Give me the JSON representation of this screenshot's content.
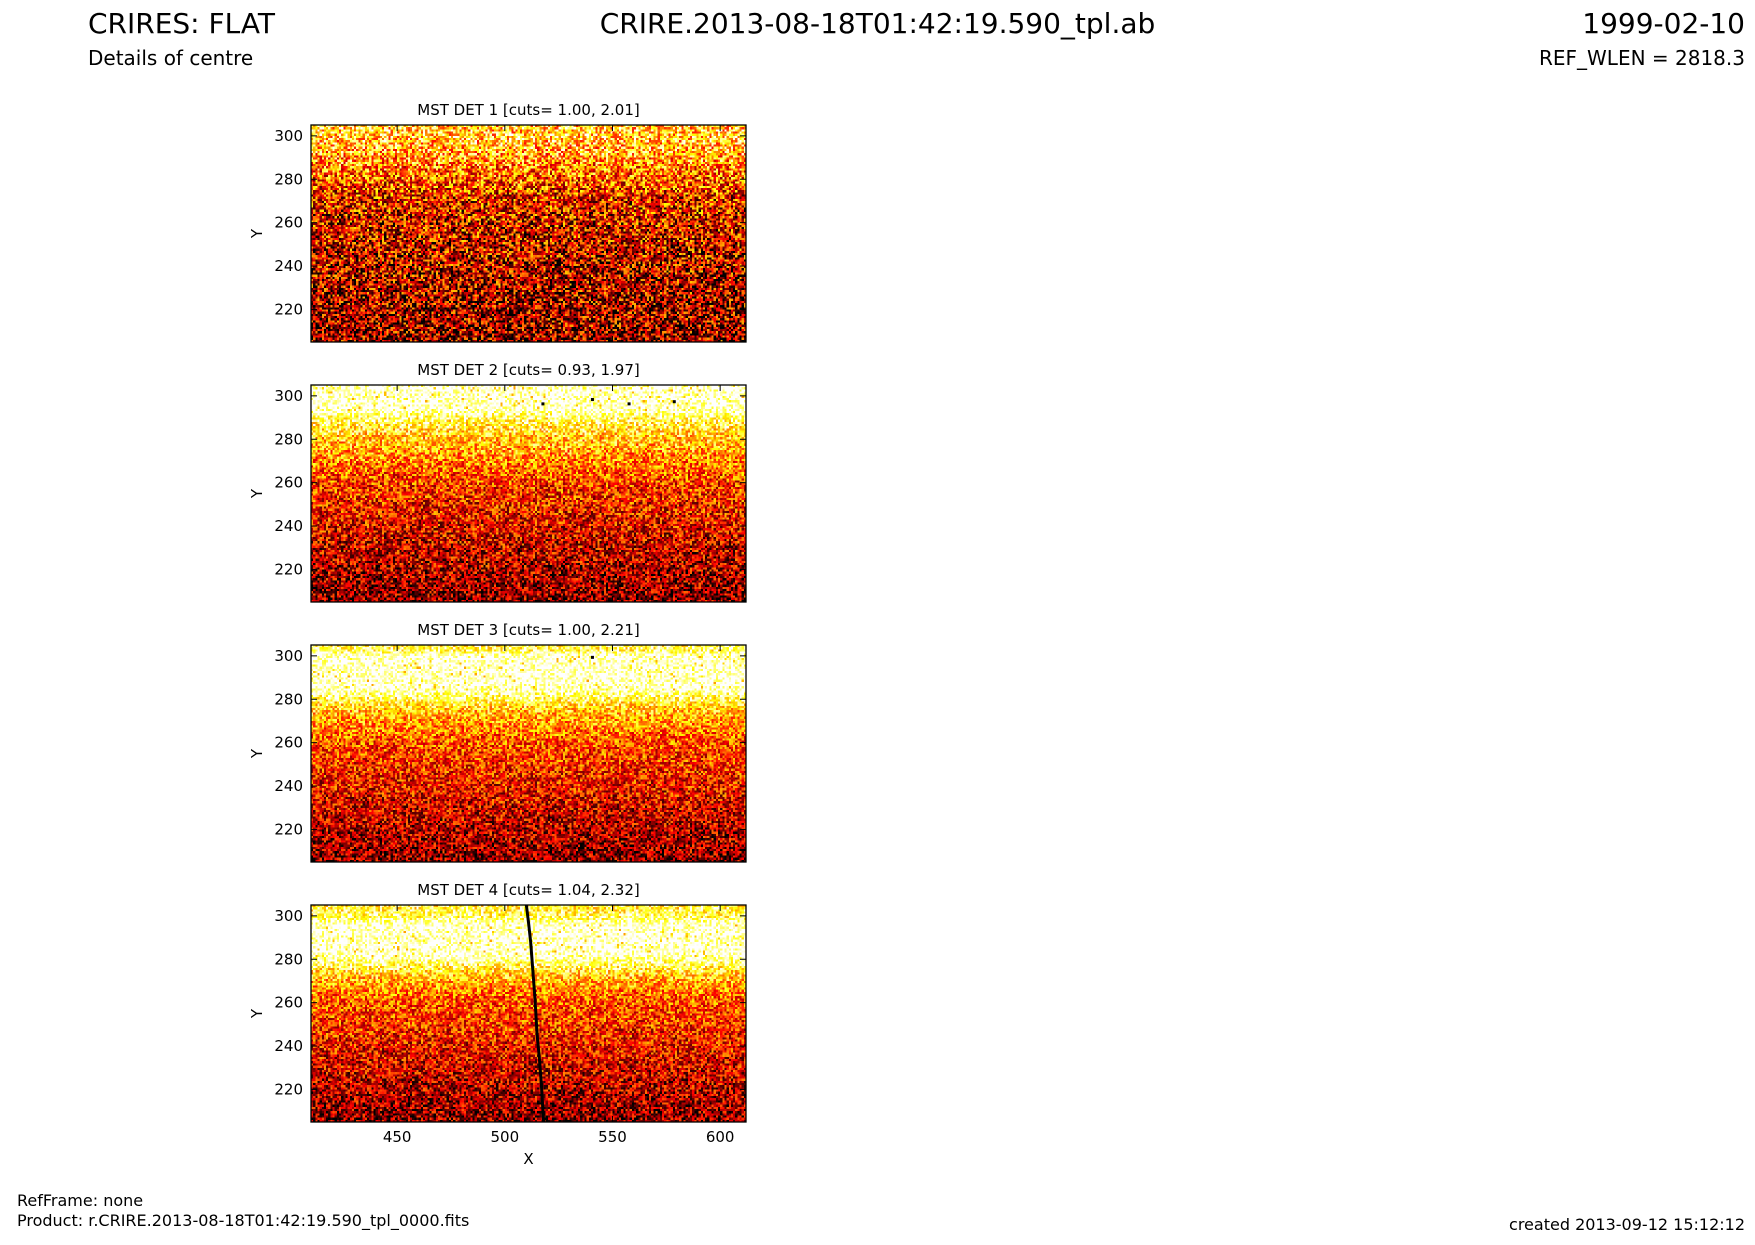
{
  "header": {
    "title": "CRIRES: FLAT",
    "subtitle": "Details of centre",
    "file": "CRIRE.2013-08-18T01:42:19.590_tpl.ab",
    "date": "1999-02-10",
    "ref_wlen": "REF_WLEN = 2818.3"
  },
  "footer": {
    "refframe": "RefFrame: none",
    "product": "Product: r.CRIRE.2013-08-18T01:42:19.590_tpl_0000.fits",
    "created": "created 2013-09-12 15:12:12"
  },
  "colors": {
    "colormap": "hot",
    "axes": "#000000",
    "background": "#ffffff"
  },
  "chart_data": [
    {
      "type": "heatmap",
      "title": "MST DET 1 [cuts= 1.00, 2.01]",
      "cuts": [
        1.0,
        2.01
      ],
      "xlabel": "",
      "ylabel": "Y",
      "xlim": [
        410,
        612
      ],
      "ylim": [
        205,
        305
      ],
      "xticks": [
        450,
        500,
        550,
        600
      ],
      "yticks": [
        220,
        240,
        260,
        280,
        300
      ],
      "show_xticklabels": false,
      "profile": [
        [
          205,
          0.22
        ],
        [
          240,
          0.3
        ],
        [
          270,
          0.38
        ],
        [
          288,
          0.6
        ],
        [
          300,
          0.72
        ],
        [
          305,
          0.7
        ]
      ],
      "noise": 0.42
    },
    {
      "type": "heatmap",
      "title": "MST DET 2 [cuts= 0.93, 1.97]",
      "cuts": [
        0.93,
        1.97
      ],
      "xlabel": "",
      "ylabel": "Y",
      "xlim": [
        410,
        612
      ],
      "ylim": [
        205,
        305
      ],
      "xticks": [
        450,
        500,
        550,
        600
      ],
      "yticks": [
        220,
        240,
        260,
        280,
        300
      ],
      "show_xticklabels": false,
      "profile": [
        [
          205,
          0.2
        ],
        [
          230,
          0.3
        ],
        [
          260,
          0.45
        ],
        [
          280,
          0.68
        ],
        [
          290,
          0.85
        ],
        [
          294,
          1.0
        ],
        [
          305,
          1.0
        ]
      ],
      "noise": 0.32,
      "bad_pixels": [
        [
          517,
          297
        ],
        [
          540,
          299
        ],
        [
          557,
          297
        ],
        [
          578,
          298
        ]
      ]
    },
    {
      "type": "heatmap",
      "title": "MST DET 3 [cuts= 1.00, 2.21]",
      "cuts": [
        1.0,
        2.21
      ],
      "xlabel": "",
      "ylabel": "Y",
      "xlim": [
        410,
        612
      ],
      "ylim": [
        205,
        305
      ],
      "xticks": [
        450,
        500,
        550,
        600
      ],
      "yticks": [
        220,
        240,
        260,
        280,
        300
      ],
      "show_xticklabels": false,
      "profile": [
        [
          205,
          0.2
        ],
        [
          230,
          0.32
        ],
        [
          260,
          0.48
        ],
        [
          275,
          0.68
        ],
        [
          282,
          0.88
        ],
        [
          285,
          1.0
        ],
        [
          300,
          1.0
        ],
        [
          302,
          0.85
        ],
        [
          305,
          0.8
        ]
      ],
      "noise": 0.3,
      "bad_pixels": [
        [
          540,
          300
        ]
      ]
    },
    {
      "type": "heatmap",
      "title": "MST DET 4 [cuts= 1.04, 2.32]",
      "cuts": [
        1.04,
        2.32
      ],
      "xlabel": "X",
      "ylabel": "Y",
      "xlim": [
        410,
        612
      ],
      "ylim": [
        205,
        305
      ],
      "xticks": [
        450,
        500,
        550,
        600
      ],
      "yticks": [
        220,
        240,
        260,
        280,
        300
      ],
      "show_xticklabels": true,
      "profile": [
        [
          205,
          0.2
        ],
        [
          230,
          0.32
        ],
        [
          262,
          0.5
        ],
        [
          272,
          0.68
        ],
        [
          279,
          0.88
        ],
        [
          282,
          1.0
        ],
        [
          296,
          1.0
        ],
        [
          299,
          0.85
        ],
        [
          305,
          0.78
        ]
      ],
      "noise": 0.3,
      "bad_column": [
        [
          510,
          305
        ],
        [
          511,
          297
        ],
        [
          512,
          288
        ],
        [
          513,
          275
        ],
        [
          514,
          262
        ],
        [
          515,
          245
        ],
        [
          516,
          235
        ],
        [
          517,
          222
        ],
        [
          518,
          205
        ]
      ]
    }
  ]
}
